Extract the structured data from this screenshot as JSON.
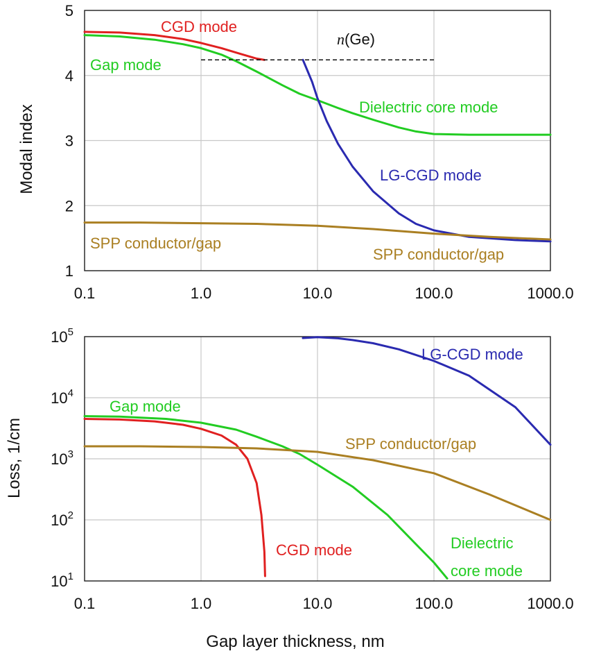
{
  "colors": {
    "cgd": "#e02020",
    "gap": "#22cc22",
    "lgcgd": "#2a2ab0",
    "spp": "#aa7f22",
    "ref_line": "#111111"
  },
  "chart_data": [
    {
      "type": "line",
      "x_scale": "log",
      "xlim": [
        0.1,
        1000
      ],
      "ylim": [
        1,
        5
      ],
      "ylabel": "Modal index",
      "xlabel": "",
      "grid": true,
      "x_ticks": [
        "0.1",
        "1.0",
        "10.0",
        "100.0",
        "1000.0"
      ],
      "y_ticks": [
        "1",
        "2",
        "3",
        "4",
        "5"
      ],
      "series": [
        {
          "name": "CGD mode",
          "color": "cgd",
          "x": [
            0.1,
            0.2,
            0.4,
            0.7,
            1.0,
            1.5,
            2.2,
            3.0,
            3.5
          ],
          "y": [
            4.67,
            4.66,
            4.62,
            4.56,
            4.5,
            4.42,
            4.33,
            4.26,
            4.24
          ]
        },
        {
          "name": "Gap mode",
          "color": "gap",
          "x": [
            0.1,
            0.2,
            0.4,
            0.7,
            1.0,
            1.5,
            2.0,
            3.0,
            5.0,
            7.0,
            10,
            15,
            20,
            30,
            50,
            70,
            100,
            200,
            500,
            1000
          ],
          "y": [
            4.62,
            4.6,
            4.55,
            4.48,
            4.42,
            4.32,
            4.22,
            4.06,
            3.85,
            3.72,
            3.62,
            3.5,
            3.42,
            3.32,
            3.2,
            3.14,
            3.1,
            3.09,
            3.09,
            3.09
          ]
        },
        {
          "name": "LG-CGD mode",
          "color": "lgcgd",
          "x": [
            7.5,
            8.0,
            9.0,
            10,
            12,
            15,
            20,
            30,
            50,
            70,
            100,
            200,
            500,
            1000
          ],
          "y": [
            4.24,
            4.12,
            3.9,
            3.65,
            3.3,
            2.95,
            2.6,
            2.22,
            1.88,
            1.72,
            1.62,
            1.52,
            1.47,
            1.45
          ]
        },
        {
          "name": "SPP conductor/gap",
          "color": "spp",
          "x": [
            0.1,
            0.3,
            1.0,
            3.0,
            10,
            30,
            100,
            300,
            1000
          ],
          "y": [
            1.74,
            1.74,
            1.73,
            1.72,
            1.69,
            1.64,
            1.57,
            1.52,
            1.48
          ]
        }
      ],
      "reference_line": {
        "label": "n(Ge)",
        "x": [
          1.0,
          100
        ],
        "y": 4.24
      },
      "annotations": [
        {
          "text": "CGD mode",
          "color": "cgd"
        },
        {
          "text": "Gap mode",
          "color": "gap"
        },
        {
          "text": "Dielectric core mode",
          "color": "gap"
        },
        {
          "text": "LG-CGD mode",
          "color": "lgcgd"
        },
        {
          "text": "SPP conductor/gap",
          "color": "spp"
        },
        {
          "text": "SPP conductor/gap",
          "color": "spp"
        }
      ]
    },
    {
      "type": "line",
      "x_scale": "log",
      "y_scale": "log",
      "xlim": [
        0.1,
        1000
      ],
      "ylim": [
        10,
        100000
      ],
      "ylabel": "Loss, 1/cm",
      "xlabel": "Gap layer thickness, nm",
      "grid": true,
      "x_ticks": [
        "0.1",
        "1.0",
        "10.0",
        "100.0",
        "1000.0"
      ],
      "y_ticks": [
        {
          "base": "10",
          "exp": "1"
        },
        {
          "base": "10",
          "exp": "2"
        },
        {
          "base": "10",
          "exp": "3"
        },
        {
          "base": "10",
          "exp": "4"
        },
        {
          "base": "10",
          "exp": "5"
        }
      ],
      "series": [
        {
          "name": "CGD mode",
          "color": "cgd",
          "x": [
            0.1,
            0.2,
            0.4,
            0.7,
            1.0,
            1.5,
            2.0,
            2.5,
            3.0,
            3.3,
            3.5,
            3.55
          ],
          "y": [
            4500,
            4400,
            4100,
            3600,
            3100,
            2400,
            1700,
            1000,
            400,
            120,
            30,
            12
          ]
        },
        {
          "name": "Gap mode",
          "color": "gap",
          "x": [
            0.1,
            0.2,
            0.5,
            1.0,
            2.0,
            3.0,
            5.0,
            7.0,
            10,
            20,
            40,
            70,
            100,
            130
          ],
          "y": [
            5000,
            4900,
            4500,
            3900,
            3000,
            2300,
            1600,
            1200,
            800,
            350,
            120,
            40,
            20,
            11
          ]
        },
        {
          "name": "SPP conductor/gap",
          "color": "spp",
          "x": [
            0.1,
            0.3,
            1.0,
            3.0,
            10,
            30,
            100,
            300,
            1000
          ],
          "y": [
            1600,
            1600,
            1560,
            1480,
            1300,
            950,
            580,
            260,
            100
          ]
        },
        {
          "name": "LG-CGD mode",
          "color": "lgcgd",
          "x": [
            7.5,
            10,
            15,
            20,
            30,
            50,
            100,
            200,
            500,
            1000
          ],
          "y": [
            95000,
            98000,
            94000,
            88000,
            78000,
            62000,
            40000,
            23000,
            7000,
            1700
          ]
        }
      ],
      "annotations": [
        {
          "text": "LG-CGD mode",
          "color": "lgcgd"
        },
        {
          "text": "Gap mode",
          "color": "gap"
        },
        {
          "text": "SPP conductor/gap",
          "color": "spp"
        },
        {
          "text": "CGD mode",
          "color": "cgd"
        },
        {
          "text": "Dielectric",
          "color": "gap"
        },
        {
          "text": "core mode",
          "color": "gap"
        }
      ]
    }
  ]
}
